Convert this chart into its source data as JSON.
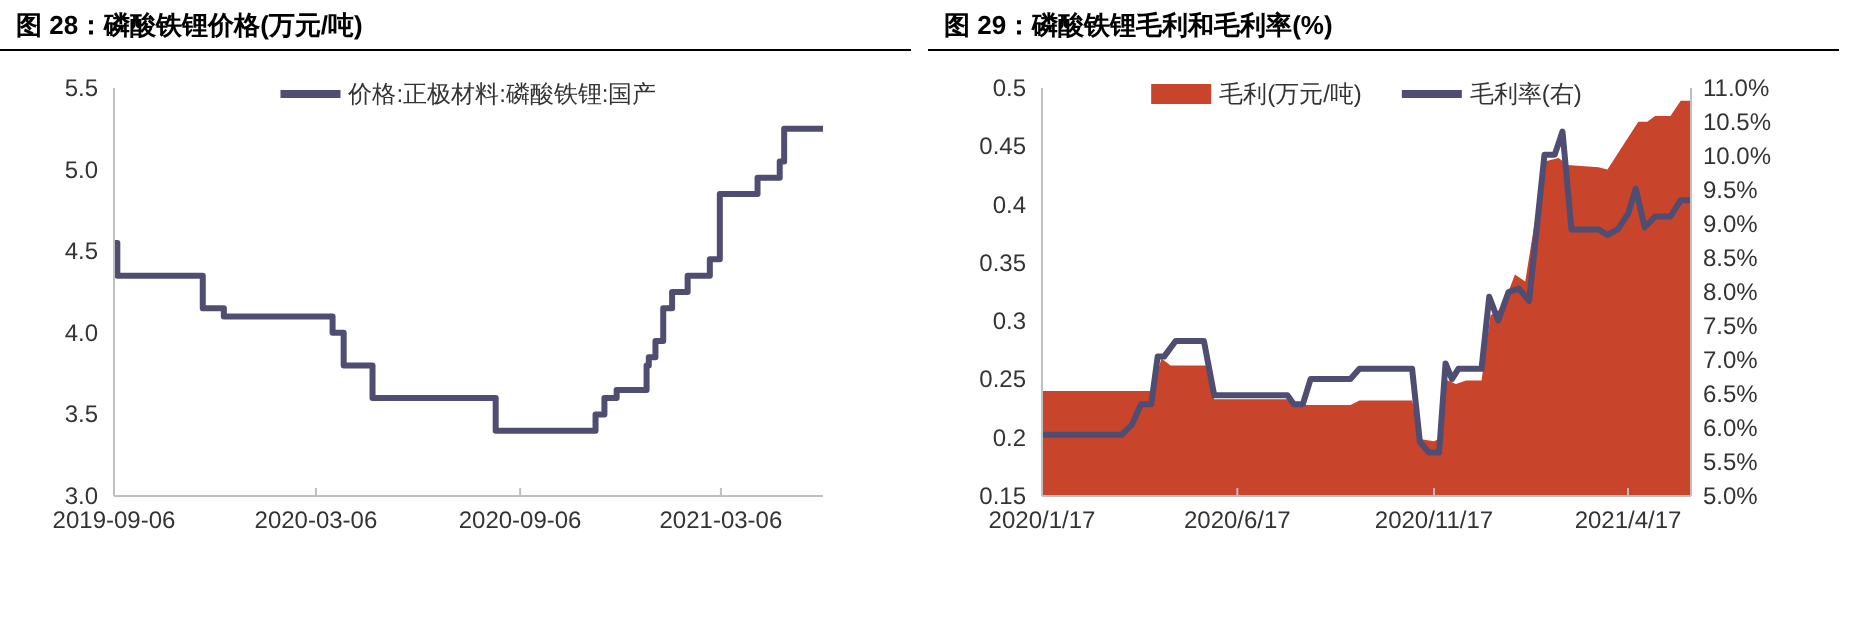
{
  "chart_data": [
    {
      "type": "step",
      "title": "图 28：磷酸铁锂价格(万元/吨)",
      "legend": "top",
      "xlim": [
        "2019-09-06",
        "2021-06-06"
      ],
      "xticks": [
        "2019-09-06",
        "2020-03-06",
        "2020-09-06",
        "2021-03-06"
      ],
      "ylim": [
        3.0,
        5.5
      ],
      "yticks": [
        {
          "value": 3,
          "label": "3.0"
        },
        3.5,
        {
          "value": 4,
          "label": "4.0"
        },
        4.5,
        {
          "value": 5,
          "label": "5.0"
        },
        5.5
      ],
      "series": [
        {
          "name": "价格:正极材料:磷酸铁锂:国产",
          "color": "#4f4d72",
          "x": [
            "2019-09-06",
            "2019-09-09",
            "2019-11-25",
            "2019-12-14",
            "2020-03-21",
            "2020-03-31",
            "2020-04-26",
            "2020-08-15",
            "2020-11-13",
            "2020-11-21",
            "2020-12-02",
            "2020-12-29",
            "2020-12-31",
            "2021-01-06",
            "2021-01-13",
            "2021-01-21",
            "2021-02-04",
            "2021-02-24",
            "2021-03-05",
            "2021-04-08",
            "2021-04-28",
            "2021-05-02",
            "2021-06-06"
          ],
          "values": [
            4.55,
            4.35,
            4.15,
            4.1,
            4.0,
            3.8,
            3.6,
            3.4,
            3.5,
            3.6,
            3.65,
            3.8,
            3.85,
            3.95,
            4.15,
            4.25,
            4.35,
            4.45,
            4.85,
            4.95,
            5.05,
            5.25,
            5.25
          ]
        }
      ]
    },
    {
      "type": "area",
      "title": "图 29：磷酸铁锂毛利和毛利率(%)",
      "legend": "top",
      "xlim": [
        "2020-01-17",
        "2021-06-05"
      ],
      "xticks": [
        {
          "value": "2020-01-17",
          "label": "2020/1/17"
        },
        {
          "value": "2020-06-17",
          "label": "2020/6/17"
        },
        {
          "value": "2020-11-17",
          "label": "2020/11/17"
        },
        {
          "value": "2021-04-17",
          "label": "2021/4/17"
        }
      ],
      "ylim": [
        0.15,
        0.5
      ],
      "yticks": [
        0.15,
        0.2,
        0.25,
        0.3,
        0.35,
        0.4,
        0.45,
        0.5
      ],
      "y2lim": [
        5,
        11
      ],
      "y2ticks": [
        {
          "value": 5,
          "label": "5.0%"
        },
        {
          "value": 5.5,
          "label": "5.5%"
        },
        {
          "value": 6,
          "label": "6.0%"
        },
        {
          "value": 6.5,
          "label": "6.5%"
        },
        {
          "value": 7,
          "label": "7.0%"
        },
        {
          "value": 7.5,
          "label": "7.5%"
        },
        {
          "value": 8,
          "label": "8.0%"
        },
        {
          "value": 8.5,
          "label": "8.5%"
        },
        {
          "value": 9,
          "label": "9.0%"
        },
        {
          "value": 9.5,
          "label": "9.5%"
        },
        {
          "value": 10,
          "label": "10.0%"
        },
        {
          "value": 10.5,
          "label": "10.5%"
        },
        {
          "value": 11,
          "label": "11.0%"
        }
      ],
      "series": [
        {
          "name": "毛利(万元/吨)",
          "color": "#c8442a",
          "x": [
            "2020-01-17",
            "2020-04-11",
            "2020-04-19",
            "2020-04-26",
            "2020-05-25",
            "2020-05-30",
            "2020-07-26",
            "2020-07-31",
            "2020-09-13",
            "2020-09-20",
            "2020-10-31",
            "2020-11-06",
            "2020-11-17",
            "2020-11-21",
            "2020-11-26",
            "2020-12-04",
            "2020-12-12",
            "2020-12-24",
            "2020-12-31",
            "2021-01-09",
            "2021-01-19",
            "2021-01-27",
            "2021-02-11",
            "2021-02-22",
            "2021-03-01",
            "2021-03-25",
            "2021-04-01",
            "2021-04-25",
            "2021-05-02",
            "2021-05-08",
            "2021-05-20",
            "2021-05-28",
            "2021-06-05"
          ],
          "values": [
            0.24,
            0.24,
            0.268,
            0.262,
            0.262,
            0.233,
            0.233,
            0.228,
            0.228,
            0.232,
            0.232,
            0.199,
            0.197,
            0.199,
            0.25,
            0.246,
            0.249,
            0.249,
            0.305,
            0.311,
            0.34,
            0.334,
            0.437,
            0.44,
            0.434,
            0.432,
            0.43,
            0.471,
            0.471,
            0.476,
            0.476,
            0.489,
            0.489
          ]
        },
        {
          "name": "毛利率(右)",
          "type": "line",
          "axis": "y2",
          "color": "#4f4d72",
          "x": [
            "2020-01-17",
            "2020-03-19",
            "2020-03-27",
            "2020-04-03",
            "2020-04-11",
            "2020-04-16",
            "2020-04-21",
            "2020-04-30",
            "2020-05-22",
            "2020-05-30",
            "2020-07-26",
            "2020-07-31",
            "2020-08-07",
            "2020-08-13",
            "2020-09-13",
            "2020-09-20",
            "2020-10-31",
            "2020-11-06",
            "2020-11-13",
            "2020-11-21",
            "2020-11-26",
            "2020-12-01",
            "2020-12-06",
            "2020-12-24",
            "2020-12-30",
            "2021-01-06",
            "2021-01-14",
            "2021-01-22",
            "2021-01-30",
            "2021-02-11",
            "2021-02-19",
            "2021-02-25",
            "2021-03-04",
            "2021-03-25",
            "2021-04-01",
            "2021-04-09",
            "2021-04-17",
            "2021-04-23",
            "2021-04-30",
            "2021-05-08",
            "2021-05-20",
            "2021-05-28",
            "2021-06-05"
          ],
          "values": [
            5.9,
            5.9,
            6.05,
            6.35,
            6.35,
            7.05,
            7.05,
            7.28,
            7.28,
            6.48,
            6.48,
            6.35,
            6.35,
            6.72,
            6.72,
            6.87,
            6.87,
            5.8,
            5.64,
            5.64,
            6.95,
            6.72,
            6.87,
            6.87,
            7.93,
            7.58,
            8.0,
            8.05,
            7.87,
            10.02,
            10.02,
            10.36,
            8.92,
            8.92,
            8.84,
            8.92,
            9.15,
            9.52,
            8.95,
            9.11,
            9.11,
            9.35,
            9.35
          ]
        }
      ]
    }
  ]
}
